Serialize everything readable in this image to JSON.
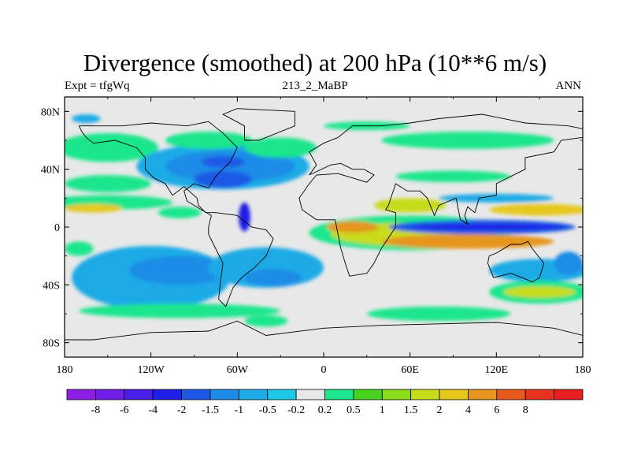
{
  "title": "Divergence (smoothed) at 200 hPa (10**6 m/s)",
  "subtitle_left": "Expt = tfgWq",
  "subtitle_center": "213_2_MaBP",
  "subtitle_right": "ANN",
  "y_ticks": [
    {
      "lat": 80,
      "label": "80N"
    },
    {
      "lat": 40,
      "label": "40N"
    },
    {
      "lat": 0,
      "label": "0"
    },
    {
      "lat": -40,
      "label": "40S"
    },
    {
      "lat": -80,
      "label": "80S"
    }
  ],
  "x_ticks": [
    {
      "lon": -180,
      "label": "180"
    },
    {
      "lon": -120,
      "label": "120W"
    },
    {
      "lon": -60,
      "label": "60W"
    },
    {
      "lon": 0,
      "label": "0"
    },
    {
      "lon": 60,
      "label": "60E"
    },
    {
      "lon": 120,
      "label": "120E"
    },
    {
      "lon": 180,
      "label": "180"
    }
  ],
  "colorbar": {
    "colors": [
      "#8c1ee6",
      "#6e1ee6",
      "#4b1ee6",
      "#1e1ee6",
      "#1e5ae6",
      "#1e8ce6",
      "#1eaae6",
      "#1ec8e6",
      "#e8e8e8",
      "#1ee68c",
      "#46d21e",
      "#8cdc1e",
      "#c8dc1e",
      "#e6c81e",
      "#e6961e",
      "#e65a1e",
      "#e6321e",
      "#e61e1e"
    ],
    "labels": [
      "-8",
      "-6",
      "-4",
      "-2",
      "-1.5",
      "-1",
      "-0.5",
      "-0.2",
      "0.2",
      "0.5",
      "1",
      "1.5",
      "2",
      "4",
      "6",
      "8"
    ]
  },
  "map_field": {
    "background": "#e8e8e8",
    "features": [
      {
        "lon": -150,
        "lat": 17,
        "rx": 45,
        "ry": 5,
        "color": "#1ee68c"
      },
      {
        "lon": -160,
        "lat": 13,
        "rx": 20,
        "ry": 3,
        "color": "#e6c81e"
      },
      {
        "lon": -150,
        "lat": 55,
        "rx": 35,
        "ry": 10,
        "color": "#1ee68c"
      },
      {
        "lon": -150,
        "lat": 30,
        "rx": 30,
        "ry": 6,
        "color": "#1ee68c"
      },
      {
        "lon": -165,
        "lat": 75,
        "rx": 10,
        "ry": 3,
        "color": "#1eaae6"
      },
      {
        "lon": -70,
        "lat": 42,
        "rx": 60,
        "ry": 16,
        "color": "#1eaae6"
      },
      {
        "lon": -65,
        "lat": 42,
        "rx": 45,
        "ry": 11,
        "color": "#1e8ce6"
      },
      {
        "lon": -70,
        "lat": 33,
        "rx": 20,
        "ry": 6,
        "color": "#1e5ae6"
      },
      {
        "lon": -70,
        "lat": 45,
        "rx": 15,
        "ry": 4,
        "color": "#1e5ae6"
      },
      {
        "lon": -55,
        "lat": 7,
        "rx": 4,
        "ry": 10,
        "color": "#1e1ee6"
      },
      {
        "lon": -80,
        "lat": 60,
        "rx": 30,
        "ry": 6,
        "color": "#1ee68c"
      },
      {
        "lon": -30,
        "lat": 55,
        "rx": 25,
        "ry": 7,
        "color": "#1ee68c"
      },
      {
        "lon": -100,
        "lat": 10,
        "rx": 15,
        "ry": 4,
        "color": "#1ee68c"
      },
      {
        "lon": -120,
        "lat": -35,
        "rx": 55,
        "ry": 22,
        "color": "#1eaae6"
      },
      {
        "lon": -100,
        "lat": -30,
        "rx": 35,
        "ry": 10,
        "color": "#1e8ce6"
      },
      {
        "lon": -40,
        "lat": -28,
        "rx": 40,
        "ry": 14,
        "color": "#1eaae6"
      },
      {
        "lon": -35,
        "lat": -35,
        "rx": 20,
        "ry": 6,
        "color": "#1e8ce6"
      },
      {
        "lon": -170,
        "lat": -15,
        "rx": 10,
        "ry": 5,
        "color": "#1ee68c"
      },
      {
        "lon": -100,
        "lat": -58,
        "rx": 70,
        "ry": 5,
        "color": "#1ee68c"
      },
      {
        "lon": -40,
        "lat": -65,
        "rx": 15,
        "ry": 4,
        "color": "#1ee68c"
      },
      {
        "lon": 60,
        "lat": -4,
        "rx": 70,
        "ry": 12,
        "color": "#1ee68c"
      },
      {
        "lon": 60,
        "lat": -5,
        "rx": 55,
        "ry": 8,
        "color": "#c8dc1e"
      },
      {
        "lon": 20,
        "lat": 0,
        "rx": 18,
        "ry": 4,
        "color": "#e6961e"
      },
      {
        "lon": 100,
        "lat": -10,
        "rx": 60,
        "ry": 5,
        "color": "#e6961e"
      },
      {
        "lon": 110,
        "lat": 0,
        "rx": 65,
        "ry": 5,
        "color": "#1e5ae6"
      },
      {
        "lon": 115,
        "lat": 0,
        "rx": 55,
        "ry": 2,
        "color": "#1e1ee6"
      },
      {
        "lon": 60,
        "lat": 15,
        "rx": 25,
        "ry": 5,
        "color": "#c8dc1e"
      },
      {
        "lon": 150,
        "lat": 12,
        "rx": 35,
        "ry": 4,
        "color": "#e6c81e"
      },
      {
        "lon": 120,
        "lat": 20,
        "rx": 40,
        "ry": 3,
        "color": "#1eaae6"
      },
      {
        "lon": 100,
        "lat": 60,
        "rx": 60,
        "ry": 6,
        "color": "#1ee68c"
      },
      {
        "lon": 30,
        "lat": 70,
        "rx": 30,
        "ry": 3,
        "color": "#1ee68c"
      },
      {
        "lon": 90,
        "lat": 35,
        "rx": 40,
        "ry": 4,
        "color": "#1ee68c"
      },
      {
        "lon": 150,
        "lat": -30,
        "rx": 35,
        "ry": 8,
        "color": "#1eaae6"
      },
      {
        "lon": 150,
        "lat": -45,
        "rx": 35,
        "ry": 8,
        "color": "#1ee68c"
      },
      {
        "lon": 150,
        "lat": -45,
        "rx": 25,
        "ry": 4,
        "color": "#c8dc1e"
      },
      {
        "lon": 80,
        "lat": -60,
        "rx": 50,
        "ry": 5,
        "color": "#1ee68c"
      },
      {
        "lon": 170,
        "lat": -25,
        "rx": 10,
        "ry": 8,
        "color": "#1e8ce6"
      }
    ],
    "coastlines": [
      [
        [
          -170,
          70
        ],
        [
          -140,
          70
        ],
        [
          -120,
          72
        ],
        [
          -95,
          70
        ],
        [
          -80,
          73
        ],
        [
          -70,
          65
        ],
        [
          -60,
          55
        ],
        [
          -65,
          45
        ],
        [
          -75,
          35
        ],
        [
          -80,
          27
        ],
        [
          -90,
          30
        ],
        [
          -97,
          25
        ],
        [
          -95,
          18
        ],
        [
          -85,
          12
        ],
        [
          -78,
          8
        ],
        [
          -80,
          0
        ],
        [
          -80,
          -5
        ],
        [
          -75,
          -15
        ],
        [
          -70,
          -25
        ],
        [
          -72,
          -40
        ],
        [
          -73,
          -50
        ],
        [
          -68,
          -55
        ],
        [
          -63,
          -42
        ],
        [
          -57,
          -35
        ],
        [
          -48,
          -28
        ],
        [
          -40,
          -20
        ],
        [
          -35,
          -8
        ],
        [
          -40,
          -2
        ],
        [
          -50,
          0
        ],
        [
          -60,
          8
        ],
        [
          -75,
          10
        ],
        [
          -82,
          10
        ],
        [
          -87,
          15
        ],
        [
          -88,
          20
        ],
        [
          -97,
          28
        ],
        [
          -105,
          22
        ],
        [
          -110,
          30
        ],
        [
          -118,
          34
        ],
        [
          -124,
          40
        ],
        [
          -124,
          48
        ],
        [
          -130,
          55
        ],
        [
          -145,
          60
        ],
        [
          -160,
          58
        ],
        [
          -165,
          62
        ],
        [
          -168,
          66
        ],
        [
          -170,
          70
        ]
      ],
      [
        [
          -55,
          60
        ],
        [
          -45,
          60
        ],
        [
          -20,
          70
        ],
        [
          -20,
          80
        ],
        [
          -60,
          82
        ],
        [
          -70,
          78
        ],
        [
          -55,
          70
        ],
        [
          -55,
          60
        ]
      ],
      [
        [
          -10,
          36
        ],
        [
          -5,
          43
        ],
        [
          -10,
          52
        ],
        [
          0,
          58
        ],
        [
          10,
          62
        ],
        [
          20,
          70
        ],
        [
          40,
          70
        ],
        [
          60,
          72
        ],
        [
          80,
          75
        ],
        [
          110,
          78
        ],
        [
          140,
          72
        ],
        [
          170,
          70
        ],
        [
          180,
          68
        ],
        [
          180,
          62
        ],
        [
          165,
          60
        ],
        [
          160,
          52
        ],
        [
          140,
          48
        ],
        [
          140,
          40
        ],
        [
          130,
          35
        ],
        [
          120,
          30
        ],
        [
          120,
          22
        ],
        [
          108,
          20
        ],
        [
          105,
          10
        ],
        [
          100,
          14
        ],
        [
          98,
          8
        ],
        [
          100,
          2
        ],
        [
          95,
          5
        ],
        [
          92,
          20
        ],
        [
          80,
          15
        ],
        [
          77,
          8
        ],
        [
          72,
          20
        ],
        [
          67,
          25
        ],
        [
          58,
          25
        ],
        [
          50,
          30
        ],
        [
          45,
          15
        ],
        [
          43,
          12
        ],
        [
          50,
          10
        ],
        [
          50,
          0
        ],
        [
          40,
          -15
        ],
        [
          35,
          -25
        ],
        [
          30,
          -32
        ],
        [
          18,
          -34
        ],
        [
          15,
          -25
        ],
        [
          12,
          -15
        ],
        [
          9,
          0
        ],
        [
          8,
          5
        ],
        [
          -5,
          5
        ],
        [
          -15,
          12
        ],
        [
          -17,
          20
        ],
        [
          -10,
          30
        ],
        [
          -5,
          36
        ],
        [
          10,
          37
        ],
        [
          30,
          31
        ],
        [
          35,
          36
        ],
        [
          28,
          40
        ],
        [
          20,
          40
        ],
        [
          12,
          44
        ],
        [
          5,
          43
        ],
        [
          -10,
          36
        ]
      ],
      [
        [
          115,
          -20
        ],
        [
          120,
          -18
        ],
        [
          130,
          -12
        ],
        [
          137,
          -12
        ],
        [
          142,
          -10
        ],
        [
          145,
          -15
        ],
        [
          153,
          -25
        ],
        [
          150,
          -35
        ],
        [
          145,
          -38
        ],
        [
          138,
          -35
        ],
        [
          130,
          -32
        ],
        [
          118,
          -35
        ],
        [
          114,
          -25
        ],
        [
          115,
          -20
        ]
      ],
      [
        [
          -180,
          -78
        ],
        [
          -160,
          -78
        ],
        [
          -120,
          -73
        ],
        [
          -80,
          -72
        ],
        [
          -60,
          -65
        ],
        [
          -40,
          -75
        ],
        [
          0,
          -70
        ],
        [
          40,
          -68
        ],
        [
          80,
          -67
        ],
        [
          120,
          -66
        ],
        [
          160,
          -70
        ],
        [
          180,
          -75
        ]
      ]
    ]
  }
}
